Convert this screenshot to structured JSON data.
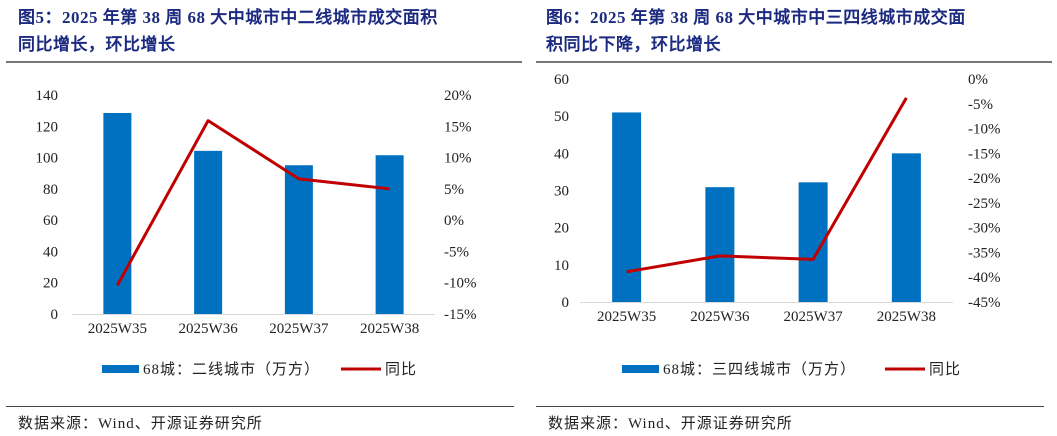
{
  "colors": {
    "bar": "#0070C0",
    "line": "#C00000",
    "title": "#1c2a80"
  },
  "chart_data": [
    {
      "type": "bar+line",
      "title": "图5：2025 年第 38 周 68 大中城市中二线城市成交面积同比增长，环比增长",
      "title_lines": [
        "图5：2025 年第 38 周 68 大中城市中二线城市成交面积",
        "同比增长，环比增长"
      ],
      "categories": [
        "2025W35",
        "2025W36",
        "2025W37",
        "2025W38"
      ],
      "series": [
        {
          "name": "68城：二线城市（万方）",
          "type": "bar",
          "axis": "left",
          "values": [
            128.5,
            104.3,
            95.1,
            101.5
          ]
        },
        {
          "name": "同比",
          "type": "line",
          "axis": "right",
          "values": [
            -10.4,
            15.9,
            6.6,
            5.0
          ]
        }
      ],
      "ylim_left": [
        0,
        140
      ],
      "yticks_left": [
        "0",
        "20",
        "40",
        "60",
        "80",
        "100",
        "120",
        "140"
      ],
      "ylim_right": [
        -15,
        20
      ],
      "yticks_right": [
        "-15%",
        "-10%",
        "-5%",
        "0%",
        "5%",
        "10%",
        "15%",
        "20%"
      ],
      "legend": "bottom",
      "grid": false,
      "source": "数据来源：Wind、开源证券研究所"
    },
    {
      "type": "bar+line",
      "title": "图6：2025 年第 38 周 68 大中城市中三四线城市成交面积同比下降，环比增长",
      "title_lines": [
        "图6：2025 年第 38 周 68 大中城市中三四线城市成交面",
        "积同比下降，环比增长"
      ],
      "categories": [
        "2025W35",
        "2025W36",
        "2025W37",
        "2025W38"
      ],
      "series": [
        {
          "name": "68城：三四线城市（万方）",
          "type": "bar",
          "axis": "left",
          "values": [
            51.0,
            30.9,
            32.2,
            40.0
          ]
        },
        {
          "name": "同比",
          "type": "line",
          "axis": "right",
          "values": [
            -38.9,
            -35.7,
            -36.4,
            -3.8
          ]
        }
      ],
      "ylim_left": [
        0,
        60
      ],
      "yticks_left": [
        "0",
        "10",
        "20",
        "30",
        "40",
        "50",
        "60"
      ],
      "ylim_right": [
        -45,
        0
      ],
      "yticks_right": [
        "-45%",
        "-40%",
        "-35%",
        "-30%",
        "-25%",
        "-20%",
        "-15%",
        "-10%",
        "-5%",
        "0%"
      ],
      "legend": "bottom",
      "grid": false,
      "source": "数据来源：Wind、开源证券研究所"
    }
  ]
}
